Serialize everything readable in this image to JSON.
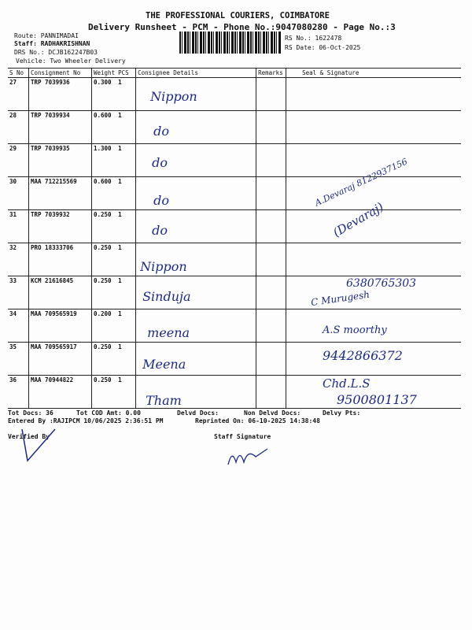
{
  "header": {
    "company": "THE PROFESSIONAL COURIERS, COIMBATORE",
    "title": "Delivery Runsheet - PCM - Phone No.:9047080280 - Page No.:3",
    "route": "Route: PANNIMADAI",
    "staff": "Staff: RADHAKRISHNAN",
    "drs": "DRS No.: DCJB162247B03",
    "vehicle": "Vehicle: Two Wheeler Delivery",
    "rs_no": "RS No.: 1622478",
    "rs_date": "RS Date: 06-Oct-2025"
  },
  "table": {
    "columns": [
      "S No",
      "Consignment No",
      "Weight",
      "PCS",
      "Consignee Details",
      "Remarks",
      "Seal & Signature"
    ],
    "rows": [
      {
        "sno": "27",
        "cn": "TRP 7039936",
        "wt": "0.300",
        "pcs": "1",
        "consignee": "Nippon"
      },
      {
        "sno": "28",
        "cn": "TRP 7039934",
        "wt": "0.600",
        "pcs": "1",
        "consignee": "do"
      },
      {
        "sno": "29",
        "cn": "TRP 7039935",
        "wt": "1.300",
        "pcs": "1",
        "consignee": "do"
      },
      {
        "sno": "30",
        "cn": "MAA 712215569",
        "wt": "0.600",
        "pcs": "1",
        "consignee": "do"
      },
      {
        "sno": "31",
        "cn": "TRP 7039932",
        "wt": "0.250",
        "pcs": "1",
        "consignee": "do"
      },
      {
        "sno": "32",
        "cn": "PRO 18333706",
        "wt": "0.250",
        "pcs": "1",
        "consignee": "Nippon"
      },
      {
        "sno": "33",
        "cn": "KCM 21616845",
        "wt": "0.250",
        "pcs": "1",
        "consignee": "Sinduja"
      },
      {
        "sno": "34",
        "cn": "MAA 709565919",
        "wt": "0.200",
        "pcs": "1",
        "consignee": "meena"
      },
      {
        "sno": "35",
        "cn": "MAA 709565917",
        "wt": "0.250",
        "pcs": "1",
        "consignee": "Meena"
      },
      {
        "sno": "36",
        "cn": "MAA 70944822",
        "wt": "0.250",
        "pcs": "1",
        "consignee": "Tham"
      }
    ]
  },
  "handwriting": {
    "sig1": "A.Devaraj 8122937156",
    "sig2": "(Devaraj)",
    "sig3": "6380765303",
    "sig4": "C Murugesh",
    "sig5": "A.S moorthy",
    "sig6": "9442866372",
    "sig7": "Chd.L.S",
    "sig8": "9500801137"
  },
  "footer": {
    "tot_docs": "Tot Docs:  36",
    "tot_cod": "Tot COD Amt:     0.00",
    "delvd": "Delvd Docs:",
    "non_delvd": "Non Delvd Docs:",
    "delvy_pts": "Delvy Pts:",
    "entered": "Entered By :RAJIPCM 10/06/2025 2:36:51 PM",
    "reprinted": "Reprinted On: 06-10-2025 14:38:48",
    "verified": "Verified By",
    "staff_sig": "Staff Signature"
  }
}
